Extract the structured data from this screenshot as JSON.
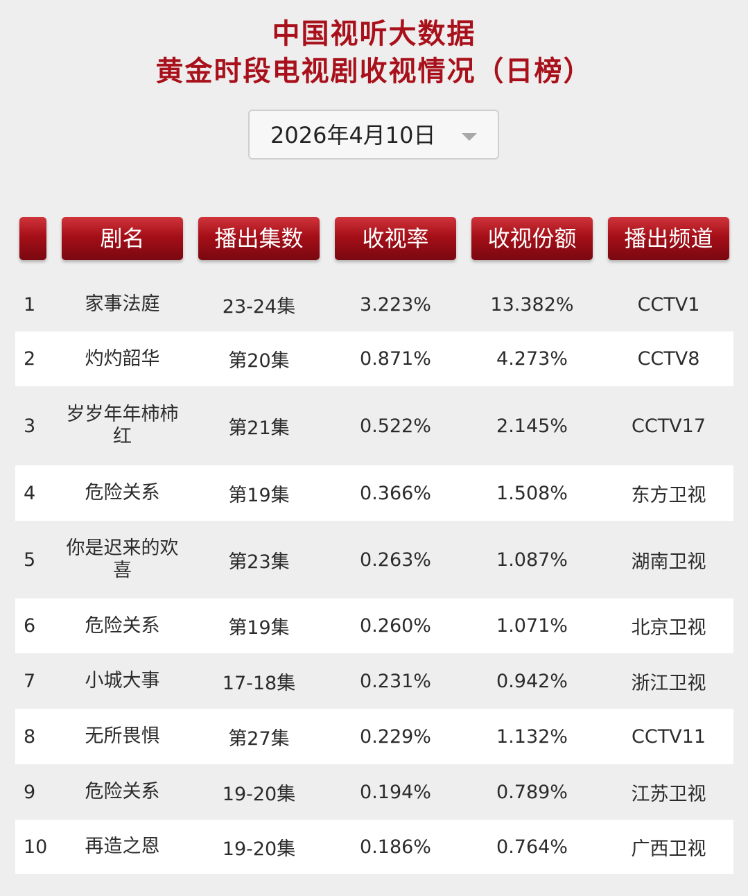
{
  "title": {
    "line1": "中国视听大数据",
    "line2": "黄金时段电视剧收视情况（日榜）"
  },
  "date_select": {
    "value": "2026年4月10日"
  },
  "table": {
    "headers": [
      "",
      "剧名",
      "播出集数",
      "收视率",
      "收视份额",
      "播出频道"
    ],
    "rows": [
      {
        "rank": "1",
        "name": "家事法庭",
        "episodes": "23-24集",
        "rating": "3.223%",
        "share": "13.382%",
        "channel": "CCTV1"
      },
      {
        "rank": "2",
        "name": "灼灼韶华",
        "episodes": "第20集",
        "rating": "0.871%",
        "share": "4.273%",
        "channel": "CCTV8"
      },
      {
        "rank": "3",
        "name": "岁岁年年柿柿红",
        "episodes": "第21集",
        "rating": "0.522%",
        "share": "2.145%",
        "channel": "CCTV17"
      },
      {
        "rank": "4",
        "name": "危险关系",
        "episodes": "第19集",
        "rating": "0.366%",
        "share": "1.508%",
        "channel": "东方卫视"
      },
      {
        "rank": "5",
        "name": "你是迟来的欢喜",
        "episodes": "第23集",
        "rating": "0.263%",
        "share": "1.087%",
        "channel": "湖南卫视"
      },
      {
        "rank": "6",
        "name": "危险关系",
        "episodes": "第19集",
        "rating": "0.260%",
        "share": "1.071%",
        "channel": "北京卫视"
      },
      {
        "rank": "7",
        "name": "小城大事",
        "episodes": "17-18集",
        "rating": "0.231%",
        "share": "0.942%",
        "channel": "浙江卫视"
      },
      {
        "rank": "8",
        "name": "无所畏惧",
        "episodes": "第27集",
        "rating": "0.229%",
        "share": "1.132%",
        "channel": "CCTV11"
      },
      {
        "rank": "9",
        "name": "危险关系",
        "episodes": "19-20集",
        "rating": "0.194%",
        "share": "0.789%",
        "channel": "江苏卫视"
      },
      {
        "rank": "10",
        "name": "再造之恩",
        "episodes": "19-20集",
        "rating": "0.186%",
        "share": "0.764%",
        "channel": "广西卫视"
      }
    ]
  },
  "colors": {
    "title": "#a8111b",
    "header_bg": "#a50f18",
    "page_bg": "#efeeee",
    "alt_row_bg": "#ffffff"
  }
}
